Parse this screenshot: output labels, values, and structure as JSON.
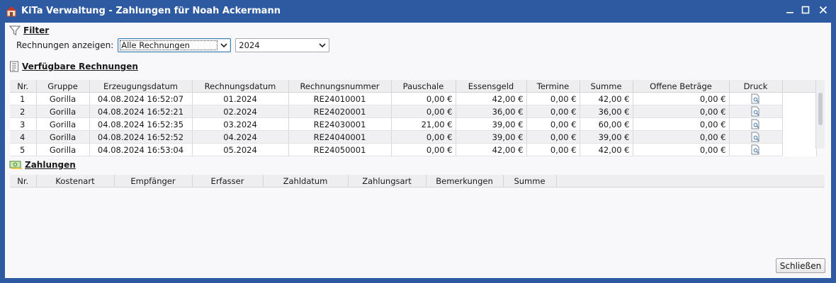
{
  "window": {
    "title": "KiTa Verwaltung - Zahlungen für Noah Ackermann",
    "controls": [
      "minimize",
      "maximize",
      "close"
    ]
  },
  "filter": {
    "heading": "Filter",
    "label": "Rechnungen anzeigen:",
    "type_value": "Alle Rechnungen",
    "year_value": "2024"
  },
  "invoices": {
    "heading": "Verfügbare Rechnungen",
    "columns": [
      "Nr.",
      "Gruppe",
      "Erzeugungsdatum",
      "Rechnungsdatum",
      "Rechnungsnummer",
      "Pauschale",
      "Essensgeld",
      "Termine",
      "Summe",
      "Offene Beträge",
      "Druck"
    ],
    "rows": [
      [
        "1",
        "Gorilla",
        "04.08.2024 16:52:07",
        "01.2024",
        "RE24010001",
        "0,00 €",
        "42,00 €",
        "0,00 €",
        "42,00 €",
        "0,00 €"
      ],
      [
        "2",
        "Gorilla",
        "04.08.2024 16:52:21",
        "02.2024",
        "RE24020001",
        "0,00 €",
        "36,00 €",
        "0,00 €",
        "36,00 €",
        "0,00 €"
      ],
      [
        "3",
        "Gorilla",
        "04.08.2024 16:52:35",
        "03.2024",
        "RE24030001",
        "21,00 €",
        "39,00 €",
        "0,00 €",
        "60,00 €",
        "0,00 €"
      ],
      [
        "4",
        "Gorilla",
        "04.08.2024 16:52:52",
        "04.2024",
        "RE24040001",
        "0,00 €",
        "39,00 €",
        "0,00 €",
        "39,00 €",
        "0,00 €"
      ],
      [
        "5",
        "Gorilla",
        "04.08.2024 16:53:04",
        "05.2024",
        "RE24050001",
        "0,00 €",
        "42,00 €",
        "0,00 €",
        "42,00 €",
        "0,00 €"
      ]
    ]
  },
  "payments": {
    "heading": "Zahlungen",
    "columns": [
      "Nr.",
      "Kostenart",
      "Empfänger",
      "Erfasser",
      "Zahldatum",
      "Zahlungsart",
      "Bemerkungen",
      "Summe"
    ]
  },
  "footer": {
    "close_label": "Schließen"
  },
  "colors": {
    "titlebar": "#2d5aa0",
    "background": "#f8f8fa"
  }
}
